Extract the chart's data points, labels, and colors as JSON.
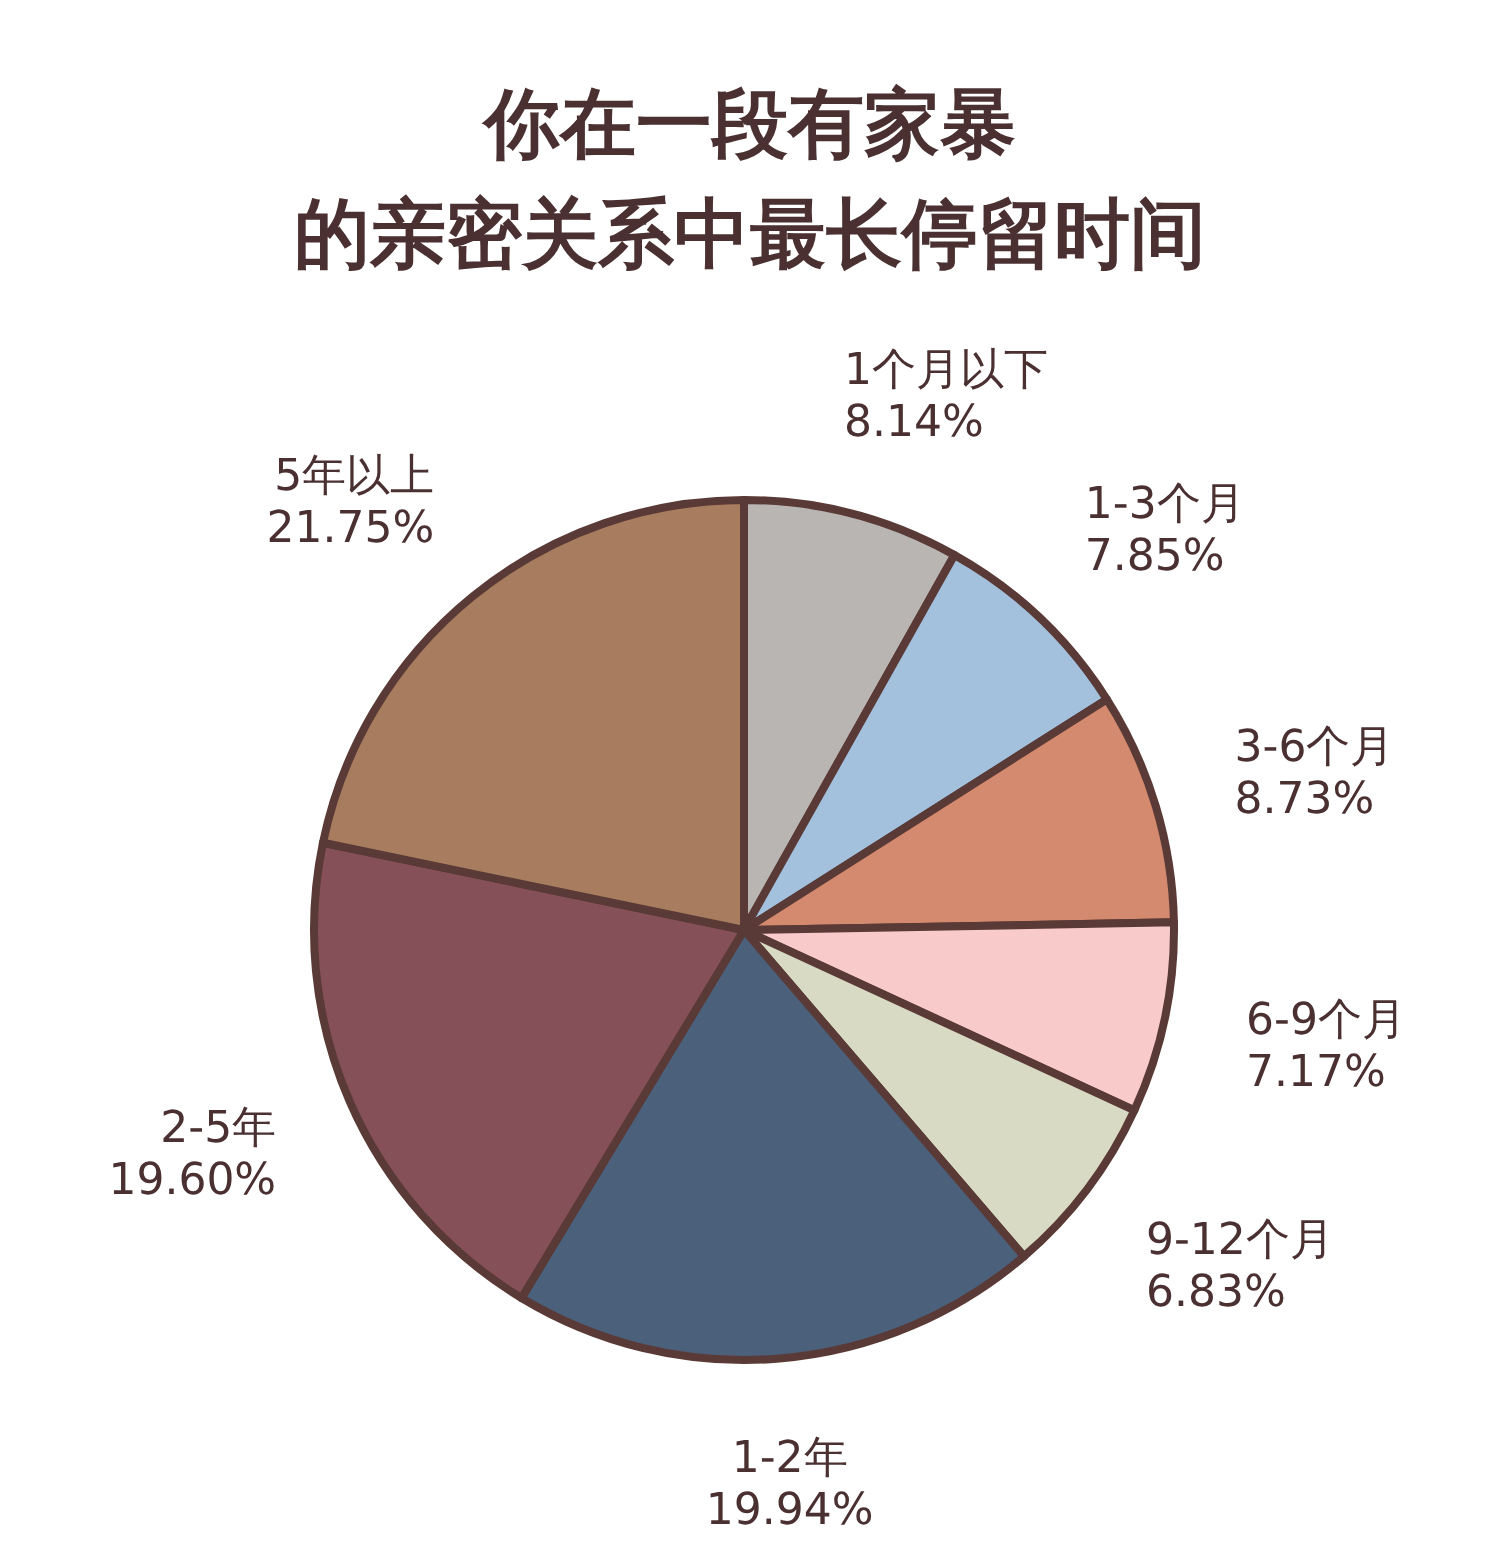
{
  "chart_data": {
    "type": "pie",
    "title": "你在一段有家暴的亲密关系中最长停留时间",
    "categories": [
      "1个月以下",
      "1-3个月",
      "3-6个月",
      "6-9个月",
      "9-12个月",
      "1-2年",
      "2-5年",
      "5年以上"
    ],
    "values": [
      8.14,
      7.85,
      8.73,
      7.17,
      6.83,
      19.94,
      19.6,
      21.75
    ],
    "value_labels": [
      "8.14%",
      "7.85%",
      "8.73%",
      "7.17%",
      "6.83%",
      "19.94%",
      "19.60%",
      "21.75%"
    ],
    "colors": [
      "#b9b5b2",
      "#a3c0dd",
      "#d48a6e",
      "#f8caca",
      "#d8dac3",
      "#4b607b",
      "#855058",
      "#a87d5f"
    ]
  }
}
